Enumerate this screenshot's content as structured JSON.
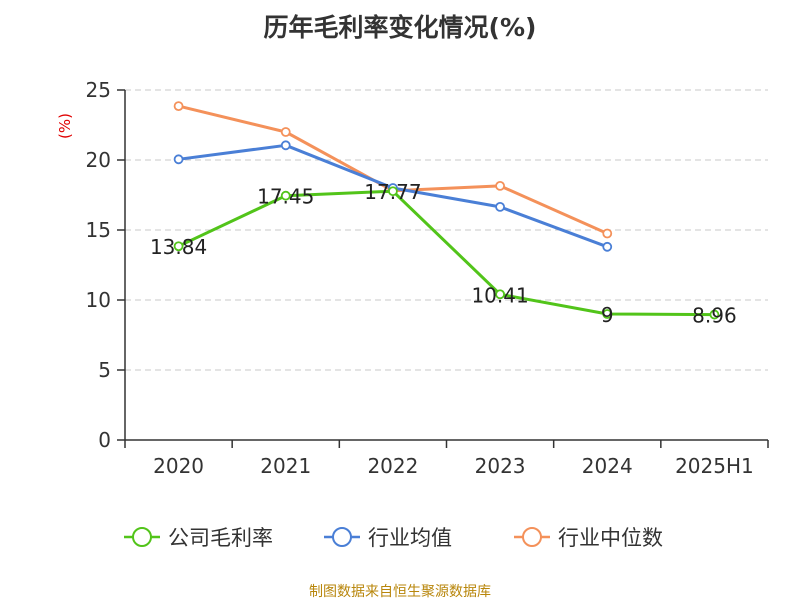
{
  "chart_data": {
    "type": "line",
    "title": "历年毛利率变化情况(%)",
    "ylabel": "(%)",
    "xlabel": "",
    "categories": [
      "2020",
      "2021",
      "2022",
      "2023",
      "2024",
      "2025H1"
    ],
    "ylim": [
      0,
      25
    ],
    "yticks": [
      0,
      5,
      10,
      15,
      20,
      25
    ],
    "grid": true,
    "legend_position": "bottom",
    "series": [
      {
        "name": "公司毛利率",
        "color": "#52c41a",
        "values": [
          13.84,
          17.45,
          17.77,
          10.41,
          9,
          8.96
        ],
        "labels": [
          "13.84",
          "17.45",
          "17.77",
          "10.41",
          "9",
          "8.96"
        ]
      },
      {
        "name": "行业均值",
        "color": "#4a7fd6",
        "values": [
          20.05,
          21.05,
          18.0,
          16.65,
          13.8,
          null
        ]
      },
      {
        "name": "行业中位数",
        "color": "#f4915a",
        "values": [
          23.85,
          22.0,
          17.8,
          18.15,
          14.75,
          null
        ]
      }
    ]
  },
  "source": "制图数据来自恒生聚源数据库"
}
